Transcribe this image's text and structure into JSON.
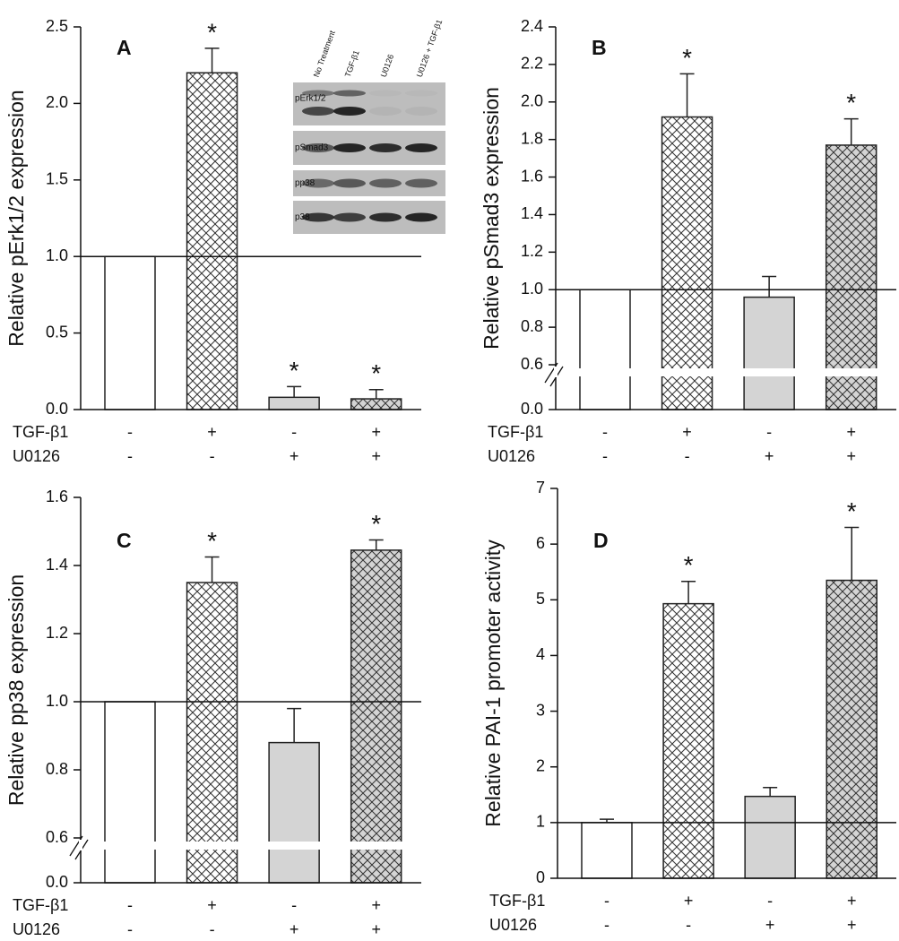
{
  "chart_data": [
    {
      "type": "bar",
      "panel_label": "A",
      "y_label": "Relative pErk1/2 expression",
      "values": [
        1.0,
        2.2,
        0.08,
        0.07
      ],
      "errors": [
        null,
        0.16,
        0.07,
        0.06
      ],
      "colors": [
        "#ffffff",
        "#ffffff",
        "#d4d4d4",
        "#d4d4d4"
      ],
      "hatch": [
        false,
        true,
        false,
        true
      ],
      "stars": [
        {
          "index": 1,
          "text": "*"
        },
        {
          "index": 2,
          "text": "*"
        },
        {
          "index": 3,
          "text": "*"
        }
      ],
      "reference_line": 1.0,
      "ylim": [
        0,
        2.5
      ],
      "yticks": [
        {
          "value": 0,
          "label": "0.0"
        },
        0.5,
        {
          "value": 1,
          "label": "1.0"
        },
        1.5,
        {
          "value": 2,
          "label": "2.0"
        },
        2.5
      ],
      "conditions": [
        {
          "name": "TGF-β1",
          "values": [
            "-",
            "+",
            "-",
            "+"
          ]
        },
        {
          "name": "U0126",
          "values": [
            "-",
            "-",
            "+",
            "+"
          ]
        }
      ],
      "inset": {
        "columns": [
          "No Treatment",
          "TGF-β1",
          "U0126",
          "U0126 + TGF-β1"
        ],
        "rows": [
          "pErk1/2",
          "pSmad3",
          "pp38",
          "p38"
        ]
      }
    },
    {
      "type": "bar",
      "panel_label": "B",
      "y_label": "Relative pSmad3 expression",
      "values": [
        1.0,
        1.92,
        0.96,
        1.77
      ],
      "errors": [
        null,
        0.23,
        0.11,
        0.14
      ],
      "colors": [
        "#ffffff",
        "#ffffff",
        "#d4d4d4",
        "#d4d4d4"
      ],
      "hatch": [
        false,
        true,
        false,
        true
      ],
      "stars": [
        {
          "index": 1,
          "text": "*"
        },
        {
          "index": 3,
          "text": "*"
        }
      ],
      "reference_line": 1.0,
      "ylim": [
        0,
        2.4
      ],
      "axis_break": [
        0,
        0.6
      ],
      "yticks": [
        {
          "value": 0,
          "label": "0.0"
        },
        0.6,
        0.8,
        {
          "value": 1,
          "label": "1.0"
        },
        1.2,
        1.4,
        1.6,
        1.8,
        {
          "value": 2,
          "label": "2.0"
        },
        2.2,
        2.4
      ],
      "conditions": [
        {
          "name": "TGF-β1",
          "values": [
            "-",
            "+",
            "-",
            "+"
          ]
        },
        {
          "name": "U0126",
          "values": [
            "-",
            "-",
            "+",
            "+"
          ]
        }
      ]
    },
    {
      "type": "bar",
      "panel_label": "C",
      "y_label": "Relative pp38 expression",
      "values": [
        1.0,
        1.35,
        0.88,
        1.445
      ],
      "errors": [
        null,
        0.075,
        0.1,
        0.03
      ],
      "colors": [
        "#ffffff",
        "#ffffff",
        "#d4d4d4",
        "#d4d4d4"
      ],
      "hatch": [
        false,
        true,
        false,
        true
      ],
      "stars": [
        {
          "index": 1,
          "text": "*"
        },
        {
          "index": 3,
          "text": "*"
        }
      ],
      "reference_line": 1.0,
      "ylim": [
        0,
        1.6
      ],
      "axis_break": [
        0,
        0.6
      ],
      "yticks": [
        {
          "value": 0,
          "label": "0.0"
        },
        0.6,
        0.8,
        {
          "value": 1,
          "label": "1.0"
        },
        1.2,
        1.4,
        1.6
      ],
      "conditions": [
        {
          "name": "TGF-β1",
          "values": [
            "-",
            "+",
            "-",
            "+"
          ]
        },
        {
          "name": "U0126",
          "values": [
            "-",
            "-",
            "+",
            "+"
          ]
        }
      ]
    },
    {
      "type": "bar",
      "panel_label": "D",
      "y_label": "Relative PAI-1 promoter activity",
      "values": [
        1.0,
        4.93,
        1.47,
        5.35
      ],
      "errors": [
        0.06,
        0.4,
        0.16,
        0.95
      ],
      "colors": [
        "#ffffff",
        "#ffffff",
        "#d4d4d4",
        "#d4d4d4"
      ],
      "hatch": [
        false,
        true,
        false,
        true
      ],
      "stars": [
        {
          "index": 1,
          "text": "*"
        },
        {
          "index": 3,
          "text": "*"
        }
      ],
      "reference_line": 1.0,
      "ylim": [
        0,
        7
      ],
      "yticks": [
        0,
        1,
        2,
        3,
        4,
        5,
        6,
        7
      ],
      "conditions": [
        {
          "name": "TGF-β1",
          "values": [
            "-",
            "+",
            "-",
            "+"
          ]
        },
        {
          "name": "U0126",
          "values": [
            "-",
            "-",
            "+",
            "+"
          ]
        }
      ]
    }
  ]
}
